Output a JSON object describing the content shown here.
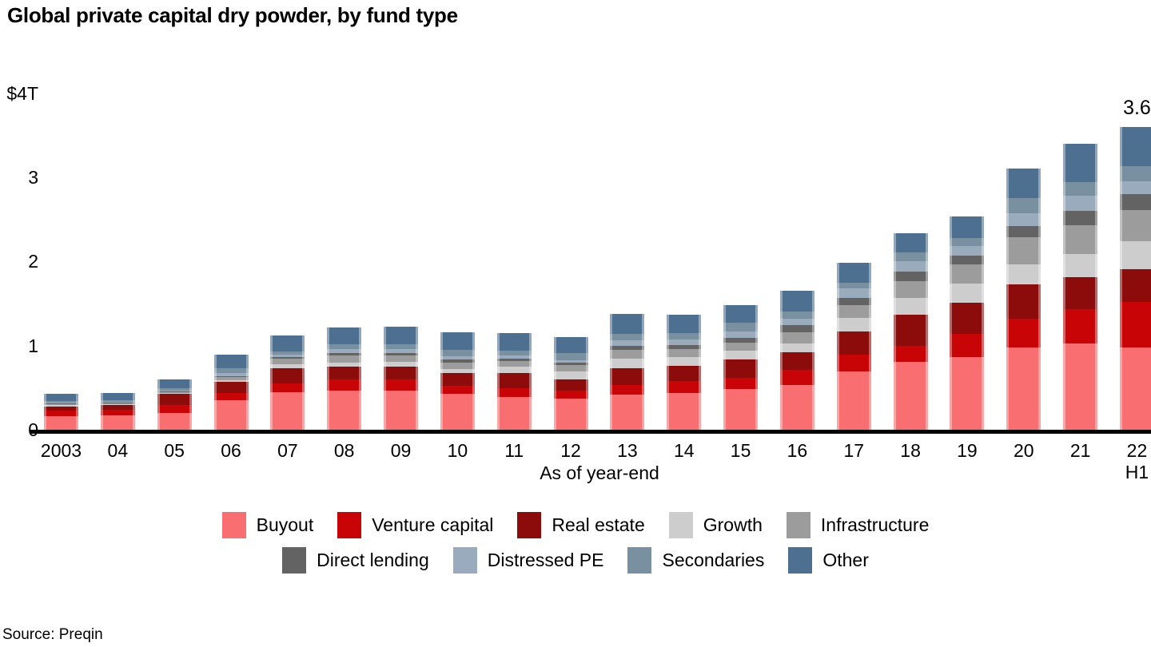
{
  "title": "Global private capital dry powder, by fund type",
  "source": "Source: Preqin",
  "chart_data": {
    "type": "bar",
    "stacked": true,
    "title": "Global private capital dry powder, by fund type",
    "xlabel": "As of year-end",
    "ylabel": "",
    "ylim": [
      0,
      4
    ],
    "grid": false,
    "legend_position": "bottom",
    "units": "$ trillions",
    "yticks": [
      {
        "value": 4,
        "label": "$4T"
      },
      {
        "value": 3,
        "label": "3"
      },
      {
        "value": 2,
        "label": "2"
      },
      {
        "value": 1,
        "label": "1"
      },
      {
        "value": 0,
        "label": "0"
      }
    ],
    "xticks": [
      {
        "label": "2003"
      },
      {
        "label": "04"
      },
      {
        "label": "05"
      },
      {
        "label": "06"
      },
      {
        "label": "07"
      },
      {
        "label": "08"
      },
      {
        "label": "09"
      },
      {
        "label": "10"
      },
      {
        "label": "11"
      },
      {
        "label": "12"
      },
      {
        "label": "13"
      },
      {
        "label": "14"
      },
      {
        "label": "15"
      },
      {
        "label": "16"
      },
      {
        "label": "17"
      },
      {
        "label": "18"
      },
      {
        "label": "19"
      },
      {
        "label": "20"
      },
      {
        "label": "21"
      },
      {
        "label": "22",
        "sublabel": "H1"
      }
    ],
    "total_label": {
      "text": "3.6",
      "category_index": 19
    },
    "series": [
      {
        "name": "Buyout",
        "color": "#F96E70",
        "values": [
          0.16,
          0.17,
          0.2,
          0.35,
          0.45,
          0.47,
          0.47,
          0.43,
          0.39,
          0.37,
          0.42,
          0.44,
          0.48,
          0.53,
          0.69,
          0.81,
          0.86,
          0.98,
          1.03,
          0.98
        ]
      },
      {
        "name": "Venture capital",
        "color": "#C90406",
        "values": [
          0.07,
          0.07,
          0.09,
          0.09,
          0.1,
          0.13,
          0.13,
          0.09,
          0.1,
          0.1,
          0.11,
          0.14,
          0.14,
          0.18,
          0.2,
          0.19,
          0.28,
          0.34,
          0.4,
          0.54
        ]
      },
      {
        "name": "Real estate",
        "color": "#8C0C0C",
        "values": [
          0.05,
          0.05,
          0.14,
          0.13,
          0.18,
          0.15,
          0.15,
          0.15,
          0.18,
          0.13,
          0.2,
          0.18,
          0.22,
          0.21,
          0.28,
          0.37,
          0.37,
          0.41,
          0.38,
          0.39
        ]
      },
      {
        "name": "Growth",
        "color": "#CDCDCD",
        "values": [
          0.01,
          0.01,
          0.01,
          0.02,
          0.05,
          0.05,
          0.06,
          0.05,
          0.08,
          0.09,
          0.12,
          0.1,
          0.1,
          0.11,
          0.16,
          0.2,
          0.23,
          0.24,
          0.28,
          0.33
        ]
      },
      {
        "name": "Infrastructure",
        "color": "#9C9C9C",
        "values": [
          0.01,
          0.01,
          0.01,
          0.04,
          0.07,
          0.08,
          0.07,
          0.08,
          0.07,
          0.08,
          0.1,
          0.1,
          0.1,
          0.13,
          0.15,
          0.2,
          0.23,
          0.32,
          0.34,
          0.37
        ]
      },
      {
        "name": "Direct lending",
        "color": "#636363",
        "values": [
          0.01,
          0.01,
          0.01,
          0.01,
          0.01,
          0.03,
          0.03,
          0.04,
          0.03,
          0.03,
          0.05,
          0.05,
          0.05,
          0.08,
          0.09,
          0.11,
          0.1,
          0.13,
          0.17,
          0.19
        ]
      },
      {
        "name": "Distressed PE",
        "color": "#99ABBC",
        "values": [
          0.01,
          0.01,
          0.01,
          0.03,
          0.03,
          0.05,
          0.05,
          0.03,
          0.03,
          0.03,
          0.06,
          0.06,
          0.08,
          0.08,
          0.11,
          0.12,
          0.11,
          0.15,
          0.18,
          0.15
        ]
      },
      {
        "name": "Secondaries",
        "color": "#78909F",
        "values": [
          0.02,
          0.02,
          0.02,
          0.06,
          0.04,
          0.06,
          0.06,
          0.08,
          0.06,
          0.08,
          0.08,
          0.08,
          0.1,
          0.09,
          0.07,
          0.11,
          0.1,
          0.18,
          0.16,
          0.18
        ]
      },
      {
        "name": "Other",
        "color": "#4E7090",
        "values": [
          0.09,
          0.09,
          0.11,
          0.16,
          0.19,
          0.2,
          0.21,
          0.21,
          0.21,
          0.19,
          0.24,
          0.22,
          0.21,
          0.24,
          0.24,
          0.23,
          0.26,
          0.36,
          0.46,
          0.47
        ]
      }
    ]
  }
}
